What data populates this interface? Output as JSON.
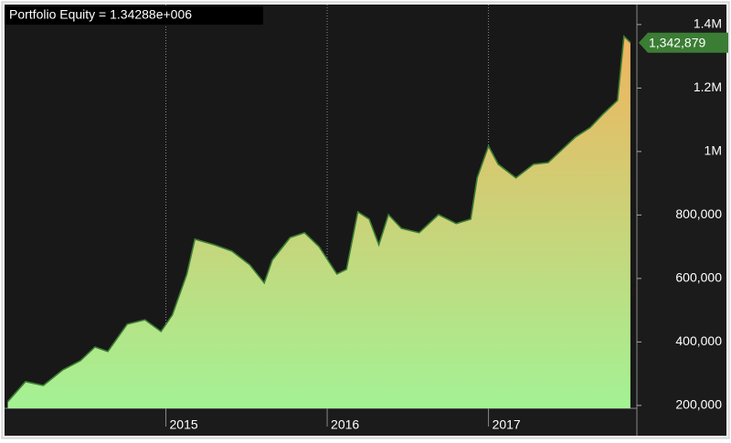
{
  "chart_data": {
    "type": "area",
    "title": "Portfolio Equity = 1.34288e+006",
    "series": [
      {
        "name": "Portfolio Equity",
        "color": "#3b7d34",
        "x": [
          2014.02,
          2014.13,
          2014.24,
          2014.36,
          2014.47,
          2014.56,
          2014.64,
          2014.76,
          2014.87,
          2014.97,
          2015.04,
          2015.13,
          2015.18,
          2015.3,
          2015.41,
          2015.52,
          2015.61,
          2015.66,
          2015.77,
          2015.86,
          2015.95,
          2016.06,
          2016.12,
          2016.19,
          2016.26,
          2016.32,
          2016.38,
          2016.46,
          2016.57,
          2016.69,
          2016.8,
          2016.89,
          2016.93,
          2017.0,
          2017.06,
          2017.17,
          2017.28,
          2017.37,
          2017.45,
          2017.54,
          2017.63,
          2017.71,
          2017.8,
          2017.84,
          2017.88
        ],
        "values": [
          212000,
          275000,
          263000,
          312000,
          341000,
          384000,
          370000,
          456000,
          470000,
          433000,
          485000,
          614000,
          724000,
          706000,
          686000,
          643000,
          586000,
          658000,
          729000,
          744000,
          700000,
          614000,
          629000,
          810000,
          787000,
          706000,
          801000,
          758000,
          744000,
          801000,
          773000,
          787000,
          917000,
          1017000,
          960000,
          917000,
          960000,
          965000,
          1003000,
          1046000,
          1075000,
          1118000,
          1161000,
          1363000,
          1342879
        ]
      }
    ],
    "end_label": {
      "value": 1342879,
      "label": "1,342,879"
    },
    "fill_gradient": [
      "#a3f294",
      "#f0b45e"
    ],
    "xlim": [
      2014.0,
      2017.92
    ],
    "xticks": [
      2015,
      2016,
      2017
    ],
    "ylim": [
      191000,
      1463000
    ],
    "yticks": [
      {
        "value": 200000,
        "label": "200,000"
      },
      {
        "value": 400000,
        "label": "400,000"
      },
      {
        "value": 600000,
        "label": "600,000"
      },
      {
        "value": 800000,
        "label": "800,000"
      },
      {
        "value": 1000000,
        "label": "1M"
      },
      {
        "value": 1200000,
        "label": "1.2M"
      },
      {
        "value": 1400000,
        "label": "1.4M"
      }
    ],
    "grid": "x"
  }
}
